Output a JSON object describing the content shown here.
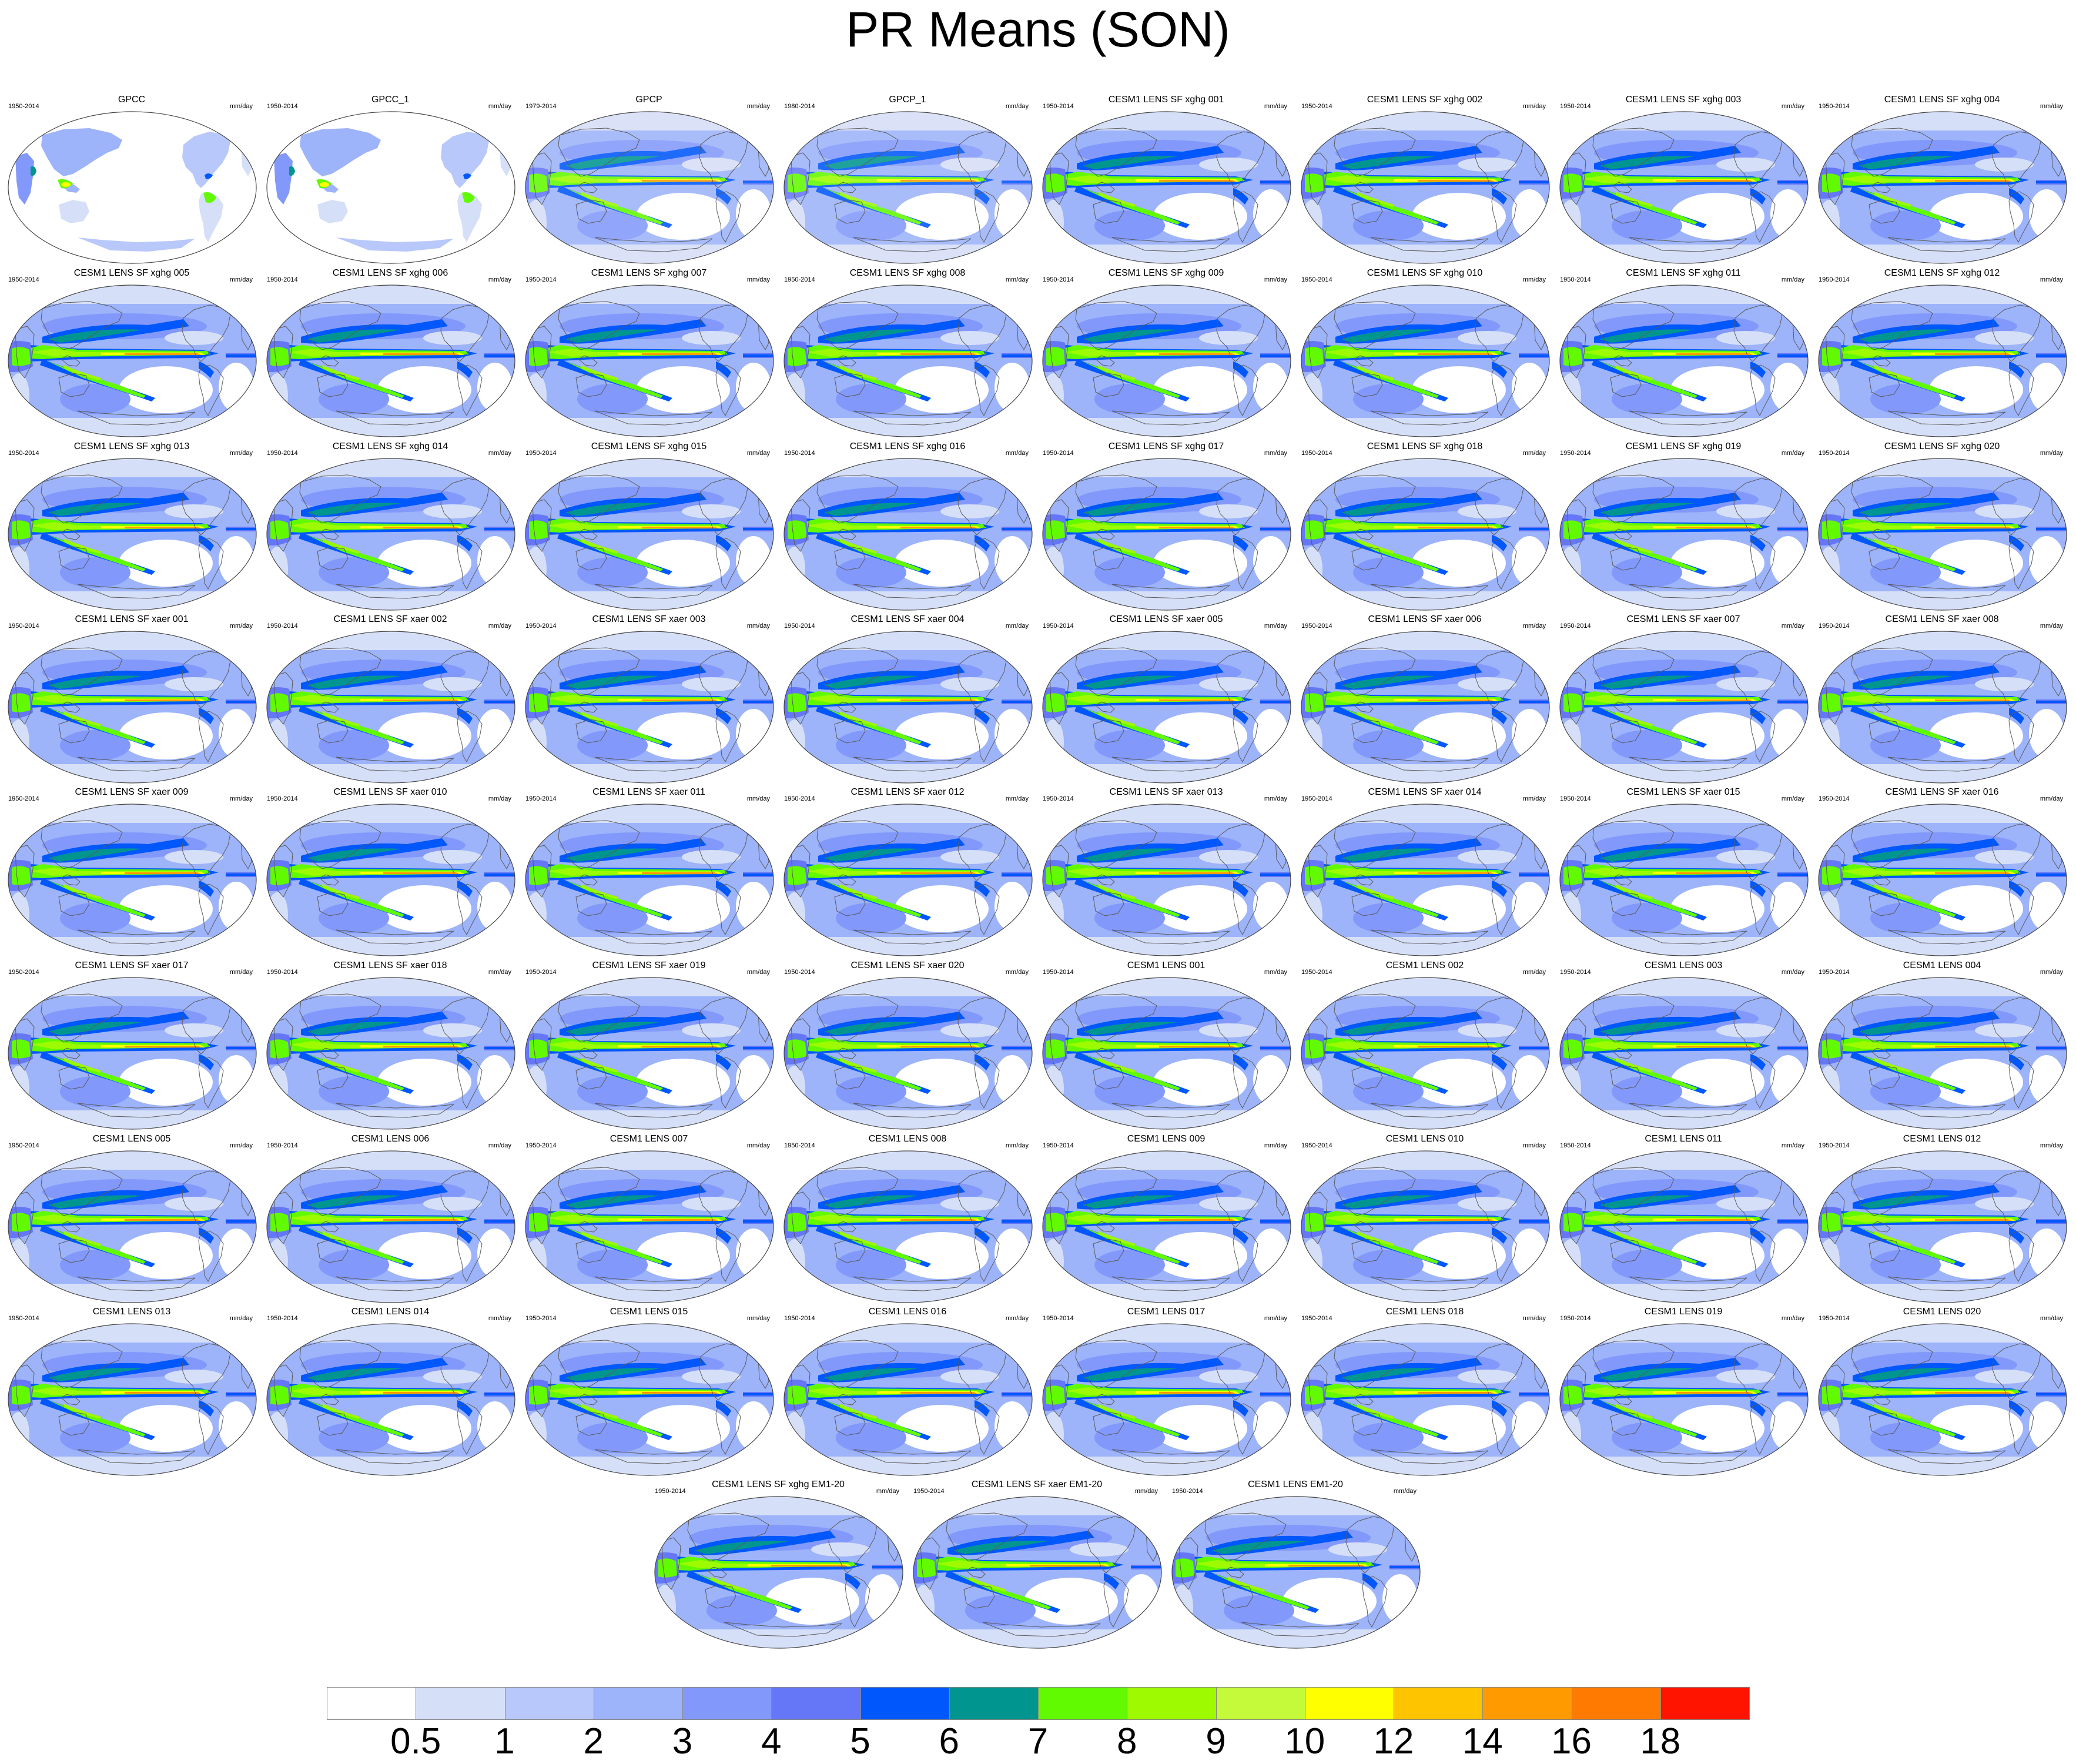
{
  "title": "PR Means (SON)",
  "units": "mm/day",
  "colorbar": {
    "colors": [
      "#ffffff",
      "#d6dff8",
      "#b9c8fa",
      "#9db3fa",
      "#8299fb",
      "#6577f7",
      "#0057fb",
      "#00968f",
      "#62fa00",
      "#9dfa00",
      "#c4fa3a",
      "#ffff00",
      "#ffc400",
      "#ff9a00",
      "#ff7a00",
      "#ff1400"
    ],
    "labels": [
      "0.5",
      "1",
      "2",
      "3",
      "4",
      "5",
      "6",
      "7",
      "8",
      "9",
      "10",
      "12",
      "14",
      "16",
      "18"
    ]
  },
  "panels": [
    {
      "title": "GPCC",
      "years": "1950-2014",
      "type": "land"
    },
    {
      "title": "GPCC_1",
      "years": "1950-2014",
      "type": "land"
    },
    {
      "title": "GPCP",
      "years": "1979-2014",
      "type": "obs"
    },
    {
      "title": "GPCP_1",
      "years": "1980-2014",
      "type": "obs"
    },
    {
      "title": "CESM1 LENS SF xghg 001",
      "years": "1950-2014",
      "type": "model"
    },
    {
      "title": "CESM1 LENS SF xghg 002",
      "years": "1950-2014",
      "type": "model"
    },
    {
      "title": "CESM1 LENS SF xghg 003",
      "years": "1950-2014",
      "type": "model"
    },
    {
      "title": "CESM1 LENS SF xghg 004",
      "years": "1950-2014",
      "type": "model"
    },
    {
      "title": "CESM1 LENS SF xghg 005",
      "years": "1950-2014",
      "type": "model"
    },
    {
      "title": "CESM1 LENS SF xghg 006",
      "years": "1950-2014",
      "type": "model"
    },
    {
      "title": "CESM1 LENS SF xghg 007",
      "years": "1950-2014",
      "type": "model"
    },
    {
      "title": "CESM1 LENS SF xghg 008",
      "years": "1950-2014",
      "type": "model"
    },
    {
      "title": "CESM1 LENS SF xghg 009",
      "years": "1950-2014",
      "type": "model"
    },
    {
      "title": "CESM1 LENS SF xghg 010",
      "years": "1950-2014",
      "type": "model"
    },
    {
      "title": "CESM1 LENS SF xghg 011",
      "years": "1950-2014",
      "type": "model"
    },
    {
      "title": "CESM1 LENS SF xghg 012",
      "years": "1950-2014",
      "type": "model"
    },
    {
      "title": "CESM1 LENS SF xghg 013",
      "years": "1950-2014",
      "type": "model"
    },
    {
      "title": "CESM1 LENS SF xghg 014",
      "years": "1950-2014",
      "type": "model"
    },
    {
      "title": "CESM1 LENS SF xghg 015",
      "years": "1950-2014",
      "type": "model"
    },
    {
      "title": "CESM1 LENS SF xghg 016",
      "years": "1950-2014",
      "type": "model"
    },
    {
      "title": "CESM1 LENS SF xghg 017",
      "years": "1950-2014",
      "type": "model"
    },
    {
      "title": "CESM1 LENS SF xghg 018",
      "years": "1950-2014",
      "type": "model"
    },
    {
      "title": "CESM1 LENS SF xghg 019",
      "years": "1950-2014",
      "type": "model"
    },
    {
      "title": "CESM1 LENS SF xghg 020",
      "years": "1950-2014",
      "type": "model"
    },
    {
      "title": "CESM1 LENS SF xaer 001",
      "years": "1950-2014",
      "type": "model"
    },
    {
      "title": "CESM1 LENS SF xaer 002",
      "years": "1950-2014",
      "type": "model"
    },
    {
      "title": "CESM1 LENS SF xaer 003",
      "years": "1950-2014",
      "type": "model"
    },
    {
      "title": "CESM1 LENS SF xaer 004",
      "years": "1950-2014",
      "type": "model"
    },
    {
      "title": "CESM1 LENS SF xaer 005",
      "years": "1950-2014",
      "type": "model"
    },
    {
      "title": "CESM1 LENS SF xaer 006",
      "years": "1950-2014",
      "type": "model"
    },
    {
      "title": "CESM1 LENS SF xaer 007",
      "years": "1950-2014",
      "type": "model"
    },
    {
      "title": "CESM1 LENS SF xaer 008",
      "years": "1950-2014",
      "type": "model"
    },
    {
      "title": "CESM1 LENS SF xaer 009",
      "years": "1950-2014",
      "type": "model"
    },
    {
      "title": "CESM1 LENS SF xaer 010",
      "years": "1950-2014",
      "type": "model"
    },
    {
      "title": "CESM1 LENS SF xaer 011",
      "years": "1950-2014",
      "type": "model"
    },
    {
      "title": "CESM1 LENS SF xaer 012",
      "years": "1950-2014",
      "type": "model"
    },
    {
      "title": "CESM1 LENS SF xaer 013",
      "years": "1950-2014",
      "type": "model"
    },
    {
      "title": "CESM1 LENS SF xaer 014",
      "years": "1950-2014",
      "type": "model"
    },
    {
      "title": "CESM1 LENS SF xaer 015",
      "years": "1950-2014",
      "type": "model"
    },
    {
      "title": "CESM1 LENS SF xaer 016",
      "years": "1950-2014",
      "type": "model"
    },
    {
      "title": "CESM1 LENS SF xaer 017",
      "years": "1950-2014",
      "type": "model"
    },
    {
      "title": "CESM1 LENS SF xaer 018",
      "years": "1950-2014",
      "type": "model"
    },
    {
      "title": "CESM1 LENS SF xaer 019",
      "years": "1950-2014",
      "type": "model"
    },
    {
      "title": "CESM1 LENS SF xaer 020",
      "years": "1950-2014",
      "type": "model"
    },
    {
      "title": "CESM1 LENS 001",
      "years": "1950-2014",
      "type": "model"
    },
    {
      "title": "CESM1 LENS 002",
      "years": "1950-2014",
      "type": "model"
    },
    {
      "title": "CESM1 LENS 003",
      "years": "1950-2014",
      "type": "model"
    },
    {
      "title": "CESM1 LENS 004",
      "years": "1950-2014",
      "type": "model"
    },
    {
      "title": "CESM1 LENS 005",
      "years": "1950-2014",
      "type": "model"
    },
    {
      "title": "CESM1 LENS 006",
      "years": "1950-2014",
      "type": "model"
    },
    {
      "title": "CESM1 LENS 007",
      "years": "1950-2014",
      "type": "model"
    },
    {
      "title": "CESM1 LENS 008",
      "years": "1950-2014",
      "type": "model"
    },
    {
      "title": "CESM1 LENS 009",
      "years": "1950-2014",
      "type": "model"
    },
    {
      "title": "CESM1 LENS 010",
      "years": "1950-2014",
      "type": "model"
    },
    {
      "title": "CESM1 LENS 011",
      "years": "1950-2014",
      "type": "model"
    },
    {
      "title": "CESM1 LENS 012",
      "years": "1950-2014",
      "type": "model"
    },
    {
      "title": "CESM1 LENS 013",
      "years": "1950-2014",
      "type": "model"
    },
    {
      "title": "CESM1 LENS 014",
      "years": "1950-2014",
      "type": "model"
    },
    {
      "title": "CESM1 LENS 015",
      "years": "1950-2014",
      "type": "model"
    },
    {
      "title": "CESM1 LENS 016",
      "years": "1950-2014",
      "type": "model"
    },
    {
      "title": "CESM1 LENS 017",
      "years": "1950-2014",
      "type": "model"
    },
    {
      "title": "CESM1 LENS 018",
      "years": "1950-2014",
      "type": "model"
    },
    {
      "title": "CESM1 LENS 019",
      "years": "1950-2014",
      "type": "model"
    },
    {
      "title": "CESM1 LENS 020",
      "years": "1950-2014",
      "type": "model"
    },
    {
      "title": "CESM1 LENS SF xghg EM1-20",
      "years": "1950-2014",
      "type": "model"
    },
    {
      "title": "CESM1 LENS SF xaer EM1-20",
      "years": "1950-2014",
      "type": "model"
    },
    {
      "title": "CESM1 LENS EM1-20",
      "years": "1950-2014",
      "type": "model"
    }
  ]
}
